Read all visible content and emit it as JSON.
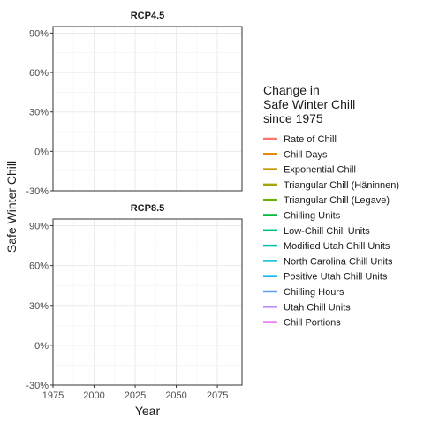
{
  "chart_data": {
    "type": "line",
    "facets": [
      "RCP4.5",
      "RCP8.5"
    ],
    "xlabel": "Year",
    "ylabel": "Safe Winter Chill",
    "xlim": [
      1975,
      2090
    ],
    "ylim": [
      -30,
      95
    ],
    "x_ticks": [
      1975,
      2000,
      2025,
      2050,
      2075
    ],
    "y_ticks": [
      -30,
      0,
      30,
      60,
      90
    ],
    "y_tick_labels": [
      "-30%",
      "0%",
      "30%",
      "60%",
      "90%"
    ],
    "grid": true,
    "legend_position": "right",
    "legend_title": [
      "Change in",
      "Safe Winter Chill",
      "since 1975"
    ],
    "series": [
      {
        "name": "Rate of Chill",
        "color": "#F8766D",
        "values": []
      },
      {
        "name": "Chill Days",
        "color": "#E58700",
        "values": []
      },
      {
        "name": "Exponential Chill",
        "color": "#C99800",
        "values": []
      },
      {
        "name": "Triangular Chill (Häninnen)",
        "color": "#A3A500",
        "values": []
      },
      {
        "name": "Triangular Chill (Legave)",
        "color": "#6BB100",
        "values": []
      },
      {
        "name": "Chilling Units",
        "color": "#00BA38",
        "values": []
      },
      {
        "name": "Low-Chill Chill Units",
        "color": "#00BF7D",
        "values": []
      },
      {
        "name": "Modified Utah Chill Units",
        "color": "#00C0AF",
        "values": []
      },
      {
        "name": "North Carolina Chill Units",
        "color": "#00BCD8",
        "values": []
      },
      {
        "name": "Positive Utah Chill Units",
        "color": "#00B0F6",
        "values": []
      },
      {
        "name": "Chilling Hours",
        "color": "#619CFF",
        "values": []
      },
      {
        "name": "Utah Chill Units",
        "color": "#B983FF",
        "values": []
      },
      {
        "name": "Chill Portions",
        "color": "#E76BF3",
        "values": []
      }
    ]
  }
}
